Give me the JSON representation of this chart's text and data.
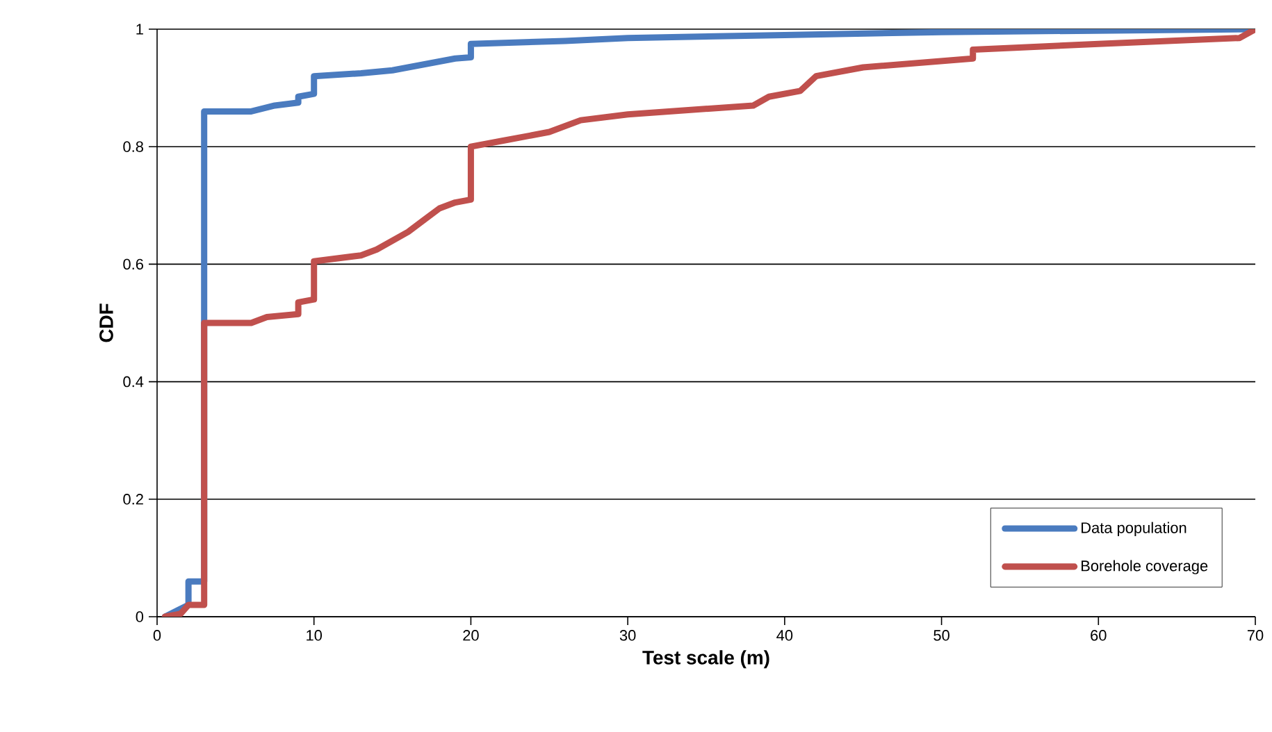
{
  "chart_data": {
    "type": "line",
    "xlabel": "Test scale (m)",
    "ylabel": "CDF",
    "xlim": [
      0,
      70
    ],
    "xticks": [
      0,
      10,
      20,
      30,
      40,
      50,
      60,
      70
    ],
    "ylim": [
      0,
      1
    ],
    "yticks": [
      0,
      0.2,
      0.4,
      0.6,
      0.8,
      1
    ],
    "grid": "y",
    "legend": "bottom right",
    "marker": "none",
    "line_style": "solid",
    "series": [
      {
        "name": "Data population",
        "color": "#4a7bbf",
        "x": [
          0.5,
          2,
          2,
          3,
          3,
          6,
          7.5,
          9,
          9,
          10,
          10,
          13,
          15,
          17,
          19,
          20,
          20,
          26,
          30,
          40,
          50,
          70
        ],
        "values": [
          0,
          0.02,
          0.06,
          0.06,
          0.86,
          0.86,
          0.87,
          0.875,
          0.885,
          0.89,
          0.92,
          0.925,
          0.93,
          0.94,
          0.95,
          0.952,
          0.975,
          0.98,
          0.985,
          0.99,
          0.995,
          1
        ]
      },
      {
        "name": "Borehole coverage",
        "color": "#c0504d",
        "x": [
          0.5,
          1.5,
          2,
          3,
          3,
          6,
          7,
          9,
          9,
          10,
          10,
          13,
          14,
          15,
          16,
          17,
          18,
          19,
          20,
          20,
          22,
          25,
          27,
          30,
          38,
          39,
          41,
          42,
          45,
          52,
          52,
          60,
          69,
          70
        ],
        "values": [
          0,
          0.005,
          0.02,
          0.02,
          0.5,
          0.5,
          0.51,
          0.515,
          0.535,
          0.54,
          0.605,
          0.615,
          0.625,
          0.64,
          0.655,
          0.675,
          0.695,
          0.705,
          0.71,
          0.8,
          0.81,
          0.825,
          0.845,
          0.855,
          0.87,
          0.885,
          0.895,
          0.92,
          0.935,
          0.95,
          0.965,
          0.975,
          0.985,
          1
        ]
      }
    ]
  }
}
